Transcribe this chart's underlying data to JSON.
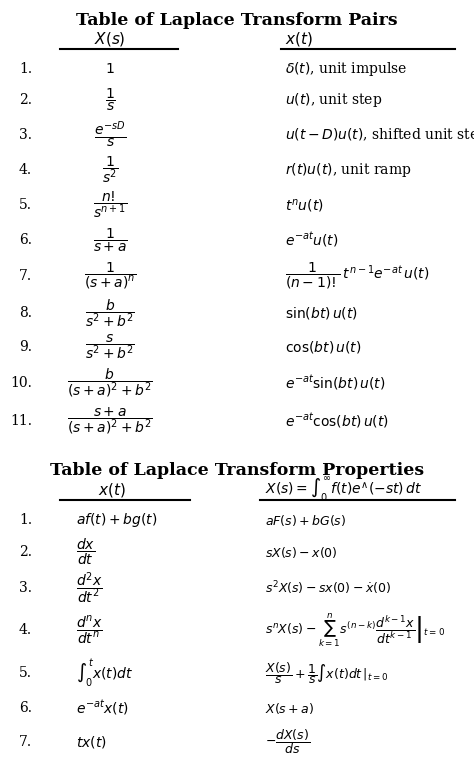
{
  "title1": "Table of Laplace Transform Pairs",
  "title2": "Table of Laplace Transform Properties",
  "bg_color": "#ffffff",
  "text_color": "#000000",
  "title_fontsize": 12.5,
  "header_fontsize": 11,
  "body_fontsize": 10
}
